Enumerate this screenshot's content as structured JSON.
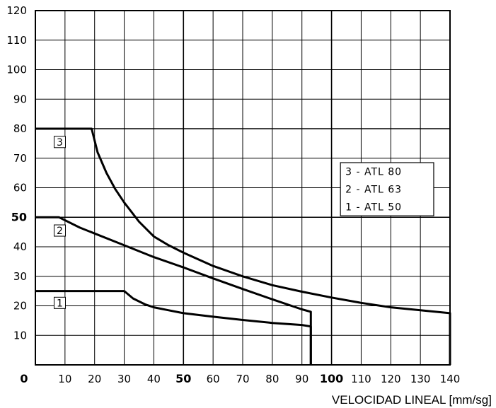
{
  "chart_data": {
    "type": "line",
    "title": "",
    "xlabel": "VELOCIDAD LINEAL [mm/sg]",
    "ylabel": "",
    "xlim": [
      0,
      140
    ],
    "ylim": [
      0,
      120
    ],
    "grid": true,
    "x_ticks": [
      {
        "v": 0,
        "label": "0",
        "bold": true
      },
      {
        "v": 10,
        "label": "10",
        "bold": false
      },
      {
        "v": 20,
        "label": "20",
        "bold": false
      },
      {
        "v": 30,
        "label": "30",
        "bold": false
      },
      {
        "v": 40,
        "label": "40",
        "bold": false
      },
      {
        "v": 50,
        "label": "50",
        "bold": true
      },
      {
        "v": 60,
        "label": "60",
        "bold": false
      },
      {
        "v": 70,
        "label": "70",
        "bold": false
      },
      {
        "v": 80,
        "label": "80",
        "bold": false
      },
      {
        "v": 90,
        "label": "90",
        "bold": false
      },
      {
        "v": 100,
        "label": "100",
        "bold": true
      },
      {
        "v": 110,
        "label": "110",
        "bold": false
      },
      {
        "v": 120,
        "label": "120",
        "bold": false
      },
      {
        "v": 130,
        "label": "130",
        "bold": false
      },
      {
        "v": 140,
        "label": "140",
        "bold": false
      }
    ],
    "y_ticks": [
      {
        "v": 10,
        "label": "10",
        "bold": false
      },
      {
        "v": 20,
        "label": "20",
        "bold": false
      },
      {
        "v": 30,
        "label": "30",
        "bold": false
      },
      {
        "v": 40,
        "label": "40",
        "bold": false
      },
      {
        "v": 50,
        "label": "50",
        "bold": true
      },
      {
        "v": 60,
        "label": "60",
        "bold": false
      },
      {
        "v": 70,
        "label": "70",
        "bold": false
      },
      {
        "v": 80,
        "label": "80",
        "bold": false
      },
      {
        "v": 90,
        "label": "90",
        "bold": false
      },
      {
        "v": 100,
        "label": "100",
        "bold": false
      },
      {
        "v": 110,
        "label": "110",
        "bold": false
      },
      {
        "v": 120,
        "label": "120",
        "bold": false
      }
    ],
    "legend_position": "right",
    "legend": [
      "3 - ATL 80",
      "2 - ATL 63",
      "1 - ATL 50"
    ],
    "series": [
      {
        "label": "1",
        "label_anchor": [
          8,
          21
        ],
        "points": [
          [
            0,
            25
          ],
          [
            30,
            25
          ],
          [
            33,
            22.5
          ],
          [
            37,
            20.5
          ],
          [
            40,
            19.5
          ],
          [
            45,
            18.5
          ],
          [
            50,
            17.5
          ],
          [
            60,
            16.3
          ],
          [
            70,
            15.2
          ],
          [
            80,
            14.2
          ],
          [
            90,
            13.5
          ],
          [
            93,
            13
          ],
          [
            93,
            0
          ]
        ]
      },
      {
        "label": "2",
        "label_anchor": [
          8,
          45.5
        ],
        "points": [
          [
            0,
            50
          ],
          [
            8,
            50
          ],
          [
            15,
            46.5
          ],
          [
            20,
            44.5
          ],
          [
            30,
            40.5
          ],
          [
            40,
            36.5
          ],
          [
            50,
            33
          ],
          [
            60,
            29.3
          ],
          [
            70,
            25.7
          ],
          [
            80,
            22.2
          ],
          [
            90,
            18.8
          ],
          [
            93,
            18
          ],
          [
            93,
            0
          ]
        ]
      },
      {
        "label": "3",
        "label_anchor": [
          8,
          75.5
        ],
        "points": [
          [
            0,
            80
          ],
          [
            19,
            80
          ],
          [
            21,
            72
          ],
          [
            24,
            65
          ],
          [
            27,
            59.5
          ],
          [
            30,
            55
          ],
          [
            35,
            48.5
          ],
          [
            40,
            43.5
          ],
          [
            45,
            40.5
          ],
          [
            50,
            38
          ],
          [
            60,
            33.5
          ],
          [
            70,
            30
          ],
          [
            80,
            27
          ],
          [
            90,
            24.8
          ],
          [
            100,
            22.8
          ],
          [
            110,
            21
          ],
          [
            120,
            19.5
          ],
          [
            130,
            18.5
          ],
          [
            140,
            17.5
          ],
          [
            140,
            0
          ]
        ]
      }
    ]
  }
}
